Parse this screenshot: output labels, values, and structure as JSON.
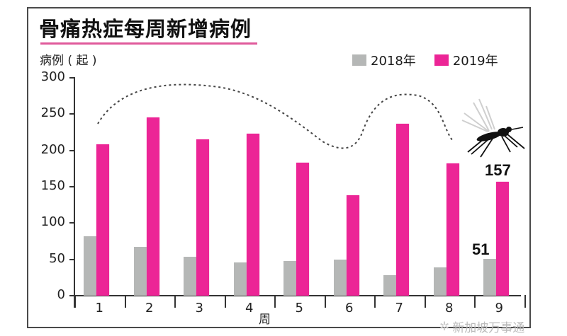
{
  "title": "骨痛热症每周新增病例",
  "y_axis_label": "病例 ( 起 )",
  "x_axis_label": "周",
  "legend": [
    {
      "label": "2018年",
      "color": "#b5b7b6"
    },
    {
      "label": "2019年",
      "color": "#ec2596"
    }
  ],
  "y_ticks": [
    "300",
    "250",
    "200",
    "150",
    "100",
    "50",
    "0"
  ],
  "x_ticks": [
    "1",
    "2",
    "3",
    "4",
    "5",
    "6",
    "7",
    "8",
    "9"
  ],
  "callouts": {
    "week9_2019": "157",
    "week9_2018": "51"
  },
  "watermark": {
    "text": "新加坡万事通",
    "badge": "通"
  },
  "icons": {
    "mosquito": "mosquito-illustration",
    "wechat": "wechat-icon"
  },
  "chart_data": {
    "type": "bar",
    "title": "骨痛热症每周新增病例",
    "xlabel": "周",
    "ylabel": "病例 ( 起 )",
    "categories": [
      "1",
      "2",
      "3",
      "4",
      "5",
      "6",
      "7",
      "8",
      "9"
    ],
    "series": [
      {
        "name": "2018年",
        "color": "#b5b7b6",
        "values": [
          82,
          67,
          54,
          46,
          48,
          50,
          28,
          39,
          51
        ]
      },
      {
        "name": "2019年",
        "color": "#ec2596",
        "values": [
          208,
          245,
          215,
          223,
          183,
          138,
          237,
          182,
          157
        ]
      }
    ],
    "ylim": [
      0,
      300
    ],
    "yticks": [
      0,
      50,
      100,
      150,
      200,
      250,
      300
    ],
    "grid": false,
    "legend_position": "top-right",
    "annotations": [
      {
        "text": "157",
        "target": "week 9, 2019年"
      },
      {
        "text": "51",
        "target": "week 9, 2018年"
      },
      {
        "text": "dashed decorative flight path of mosquito",
        "type": "decoration"
      }
    ]
  }
}
